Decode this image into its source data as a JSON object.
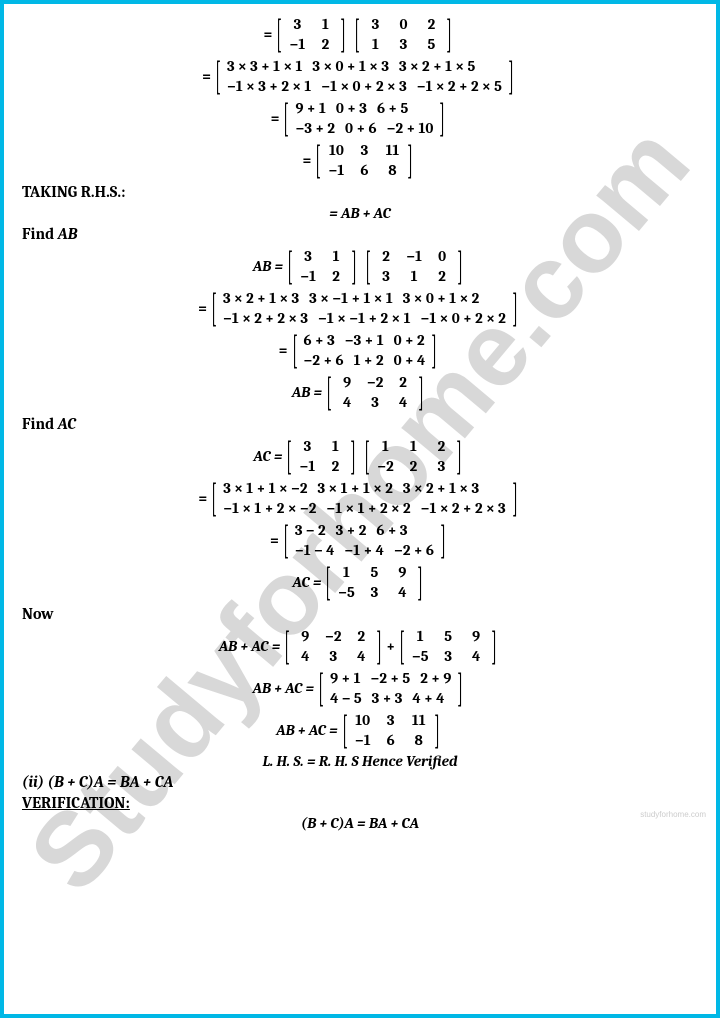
{
  "border_color": "#00b8e6",
  "watermark": "Studyforhome.com",
  "footer_small": "studyforhome.com",
  "s1": {
    "m1": {
      "rows": [
        [
          "3",
          "1"
        ],
        [
          "−1",
          "2"
        ]
      ]
    },
    "m2": {
      "rows": [
        [
          "3",
          "0",
          "2"
        ],
        [
          "1",
          "3",
          "5"
        ]
      ]
    },
    "exp": {
      "rows": [
        [
          "3 × 3 + 1 × 1",
          "3 × 0 + 1 × 3",
          "3 × 2 + 1 × 5"
        ],
        [
          "−1 × 3 + 2 × 1",
          "−1 × 0 + 2 × 3",
          "−1 × 2 + 2 × 5"
        ]
      ]
    },
    "sum": {
      "rows": [
        [
          "9 + 1",
          "0 + 3",
          "6 + 5"
        ],
        [
          "−3 + 2",
          "0 + 6",
          "−2 + 10"
        ]
      ]
    },
    "res": {
      "rows": [
        [
          "10",
          "3",
          "11"
        ],
        [
          "−1",
          "6",
          "8"
        ]
      ]
    }
  },
  "rhs_title": "TAKING R.H.S.:",
  "rhs_eq": "= AB + AC",
  "findAB": "Find AB",
  "ab": {
    "m1": {
      "rows": [
        [
          "3",
          "1"
        ],
        [
          "−1",
          "2"
        ]
      ]
    },
    "m2": {
      "rows": [
        [
          "2",
          "−1",
          "0"
        ],
        [
          "3",
          "1",
          "2"
        ]
      ]
    },
    "exp": {
      "rows": [
        [
          "3 × 2 + 1 × 3",
          "3 × −1 + 1 × 1",
          "3 × 0 + 1 × 2"
        ],
        [
          "−1 × 2 + 2 × 3",
          "−1 × −1 + 2 × 1",
          "−1 × 0 + 2 × 2"
        ]
      ]
    },
    "sum": {
      "rows": [
        [
          "6 + 3",
          "−3 + 1",
          "0 + 2"
        ],
        [
          "−2 + 6",
          "1 + 2",
          "0 + 4"
        ]
      ]
    },
    "res": {
      "rows": [
        [
          "9",
          "−2",
          "2"
        ],
        [
          "4",
          "3",
          "4"
        ]
      ]
    }
  },
  "findAC": "Find AC",
  "ac": {
    "m1": {
      "rows": [
        [
          "3",
          "1"
        ],
        [
          "−1",
          "2"
        ]
      ]
    },
    "m2": {
      "rows": [
        [
          "1",
          "1",
          "2"
        ],
        [
          "−2",
          "2",
          "3"
        ]
      ]
    },
    "exp": {
      "rows": [
        [
          "3 × 1 + 1 × −2",
          "3 × 1 + 1 × 2",
          "3 × 2 + 1 × 3"
        ],
        [
          "−1 × 1 + 2 × −2",
          "−1 × 1 + 2 × 2",
          "−1 × 2 + 2 × 3"
        ]
      ]
    },
    "sum": {
      "rows": [
        [
          "3 − 2",
          "3 + 2",
          "6 + 3"
        ],
        [
          "−1 − 4",
          "−1 + 4",
          "−2 + 6"
        ]
      ]
    },
    "res": {
      "rows": [
        [
          "1",
          "5",
          "9"
        ],
        [
          "−5",
          "3",
          "4"
        ]
      ]
    }
  },
  "now": "Now",
  "add": {
    "left": {
      "rows": [
        [
          "9",
          "−2",
          "2"
        ],
        [
          "4",
          "3",
          "4"
        ]
      ]
    },
    "right": {
      "rows": [
        [
          "1",
          "5",
          "9"
        ],
        [
          "−5",
          "3",
          "4"
        ]
      ]
    },
    "sum": {
      "rows": [
        [
          "9 + 1",
          "−2 + 5",
          "2 + 9"
        ],
        [
          "4 − 5",
          "3 + 3",
          "4 + 4"
        ]
      ]
    },
    "res": {
      "rows": [
        [
          "10",
          "3",
          "11"
        ],
        [
          "−1",
          "6",
          "8"
        ]
      ]
    }
  },
  "verified": "L. H. S. =   R. H. S Hence Verified",
  "part2": "(ii) (B + C)A = BA + CA",
  "ver_title": "VERIFICATION:",
  "final_eq": "(B + C)A = BA + CA",
  "lbl": {
    "eq": "=",
    "AB_eq": "AB =",
    "AC_eq": "AC =",
    "ABAC_eq": "AB + AC =",
    "plus": "+"
  }
}
